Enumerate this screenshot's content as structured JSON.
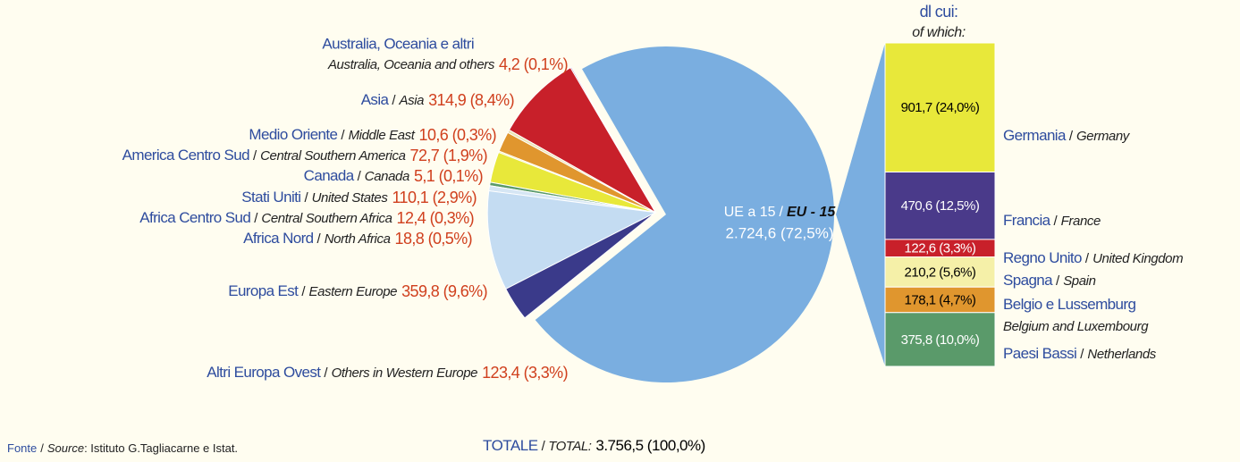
{
  "chart_data": {
    "type": "pie-of-bar",
    "header": "dl cui:",
    "header_en": "of which:",
    "separator": "/",
    "categories": [
      "Australia, Oceania e altri",
      "Asia",
      "Medio Oriente",
      "America Centro Sud",
      "Canada",
      "Stati Uniti",
      "Africa Centro Sud",
      "Africa Nord",
      "Europa Est",
      "Altri Europa Ovest"
    ],
    "categories_en": [
      "Australia, Oceania and others",
      "Asia",
      "Middle East",
      "Central Southern America",
      "Canada",
      "United States",
      "Central Southern Africa",
      "North Africa",
      "Eastern Europe",
      "Others in Western Europe"
    ],
    "values": [
      4.2,
      314.9,
      10.6,
      72.7,
      5.1,
      110.1,
      12.4,
      18.8,
      359.8,
      123.4
    ],
    "value_labels": [
      "4,2 (0,1%)",
      "314,9 (8,4%)",
      "10,6 (0,3%)",
      "72,7 (1,9%)",
      "5,1 (0,1%)",
      "110,1 (2,9%)",
      "12,4 (0,3%)",
      "18,8 (0,5%)",
      "359,8 (9,6%)",
      "123,4 (3,3%)"
    ],
    "colors": [
      "#8a5a9a",
      "#c8202a",
      "#ece4b4",
      "#e0962e",
      "#f3eea0",
      "#e8e83a",
      "#5a9a6a",
      "#d6e6f4",
      "#c4dcf2",
      "#3a3a8a"
    ],
    "main": {
      "name": "UE a 15",
      "name_en": "EU - 15",
      "value": 2724.6,
      "value_label": "2.724,6 (72,5%)",
      "color": "#7aaee0"
    },
    "bar": {
      "categories": [
        "Germania",
        "Francia",
        "Regno Unito",
        "Spagna",
        "Belgio e Lussemburg",
        "Paesi Bassi"
      ],
      "categories_en": [
        "Germany",
        "France",
        "United Kingdom",
        "Spain",
        "Belgium and Luxembourg",
        "Netherlands"
      ],
      "values": [
        901.7,
        470.6,
        122.6,
        210.2,
        178.1,
        375.8
      ],
      "value_labels": [
        "901,7 (24,0%)",
        "470,6 (12,5%)",
        "122,6 (3,3%)",
        "210,2 (5,6%)",
        "178,1 (4,7%)",
        "375,8 (10,0%)"
      ],
      "colors": [
        "#e8e83a",
        "#4a3a8a",
        "#c8202a",
        "#f5f0a8",
        "#e0962e",
        "#5a9a6a"
      ]
    },
    "total": {
      "label": "TOTALE",
      "label_en": "TOTAL:",
      "value": 3756.5,
      "value_label": "3.756,5 (100,0%)"
    },
    "source": {
      "label": "Fonte",
      "label_en": "Source",
      "text": ": Istituto G.Tagliacarne e Istat."
    }
  }
}
